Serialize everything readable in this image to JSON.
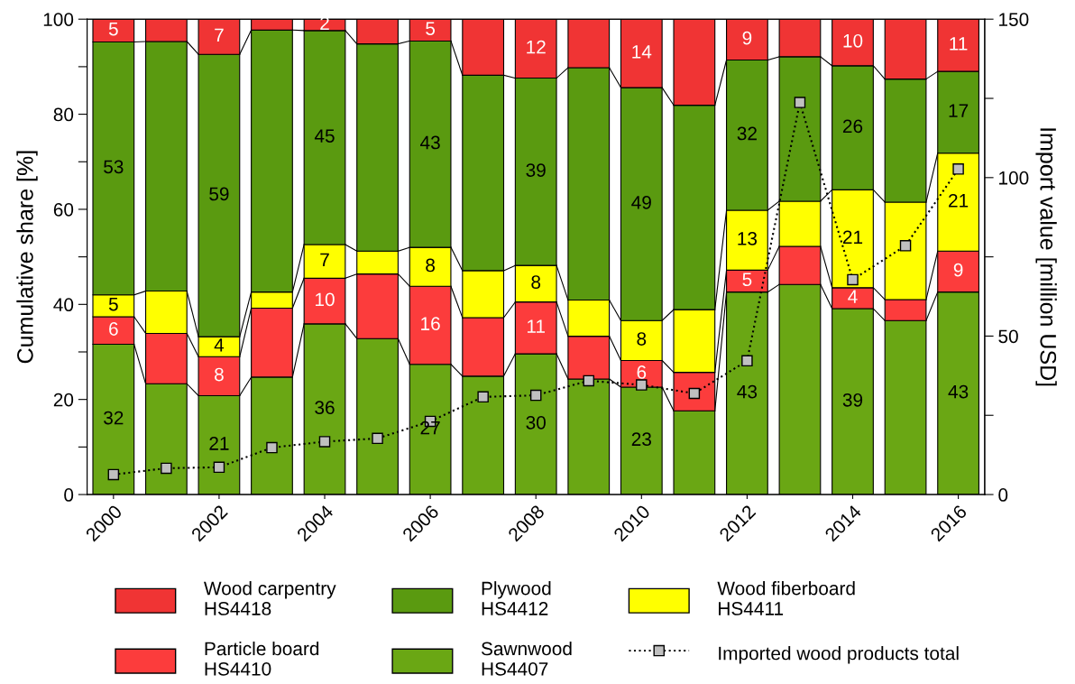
{
  "chart_data": {
    "type": "bar",
    "stacked": true,
    "ylabel": "Cumulative share [%]",
    "y2label": "Import value [million USD]",
    "x": [
      2000,
      2001,
      2002,
      2003,
      2004,
      2005,
      2006,
      2007,
      2008,
      2009,
      2010,
      2011,
      2012,
      2013,
      2014,
      2015,
      2016
    ],
    "xlim": [
      1999.5,
      2016.5
    ],
    "xticks": [
      2000,
      2002,
      2004,
      2006,
      2008,
      2010,
      2012,
      2014,
      2016
    ],
    "ylim": [
      0,
      100
    ],
    "yticks": [
      0,
      {
        "value": 10,
        "label": null
      },
      20,
      {
        "value": 30,
        "label": null
      },
      40,
      {
        "value": 50,
        "label": null
      },
      60,
      {
        "value": 70,
        "label": null
      },
      80,
      {
        "value": 90,
        "label": null
      },
      100
    ],
    "y2lim": [
      0,
      150
    ],
    "y2ticks": [
      0,
      {
        "value": 25,
        "label": null
      },
      50,
      {
        "value": 75,
        "label": null
      },
      100,
      {
        "value": 125,
        "label": null
      },
      150
    ],
    "grid": false,
    "legend": "bottom",
    "series": [
      {
        "name": "Sawnwood\nHS4407",
        "color": "#6aa714",
        "values": [
          31.6,
          23.3,
          20.8,
          24.7,
          35.9,
          32.8,
          27.4,
          24.9,
          29.6,
          24.3,
          22.6,
          17.6,
          42.6,
          44.2,
          39.1,
          36.6,
          42.6
        ],
        "value_labels": [
          "32",
          null,
          "21",
          null,
          "36",
          null,
          "27",
          null,
          "30",
          null,
          "23",
          null,
          "43",
          null,
          "39",
          null,
          "43"
        ]
      },
      {
        "name": "Particle board\nHS4410",
        "color": "#fc3c3c",
        "values": [
          5.8,
          10.6,
          8.2,
          14.5,
          9.6,
          13.6,
          16.4,
          12.3,
          10.9,
          9.0,
          5.6,
          8.1,
          4.6,
          8.0,
          4.4,
          4.4,
          8.6
        ],
        "value_labels": [
          "6",
          null,
          "8",
          null,
          "10",
          null,
          "16",
          null,
          "11",
          null,
          "6",
          null,
          "5",
          null,
          "4",
          null,
          "9"
        ]
      },
      {
        "name": "Wood fiberboard\nHS4411",
        "color": "#ffff00",
        "values": [
          4.6,
          8.9,
          4.2,
          3.4,
          7.1,
          4.8,
          8.2,
          9.9,
          7.7,
          7.6,
          8.4,
          13.2,
          12.6,
          9.5,
          20.6,
          20.5,
          20.6
        ],
        "value_labels": [
          "5",
          null,
          "4",
          null,
          "7",
          null,
          "8",
          null,
          "8",
          null,
          "8",
          null,
          "13",
          null,
          "21",
          null,
          "21"
        ]
      },
      {
        "name": "Plywood\nHS4412",
        "color": "#5a9a10",
        "values": [
          53.2,
          52.5,
          59.4,
          55.1,
          45.0,
          43.6,
          43.4,
          41.1,
          39.4,
          48.9,
          49.0,
          43.0,
          31.6,
          30.4,
          26.1,
          25.9,
          17.2
        ],
        "value_labels": [
          "53",
          null,
          "59",
          null,
          "45",
          null,
          "43",
          null,
          "39",
          null,
          "49",
          null,
          "32",
          null,
          "26",
          null,
          "17"
        ]
      },
      {
        "name": "Wood carpentry\nHS4418",
        "color": "#f03434",
        "values": [
          4.8,
          4.7,
          7.4,
          2.3,
          2.4,
          5.2,
          4.6,
          11.8,
          12.4,
          10.2,
          14.4,
          18.1,
          8.6,
          7.9,
          9.8,
          12.6,
          11.0
        ],
        "value_labels": [
          "5",
          null,
          "7",
          null,
          "2",
          null,
          "5",
          null,
          "12",
          null,
          "14",
          null,
          "9",
          null,
          "10",
          null,
          "11"
        ]
      },
      {
        "name": "Imported wood products total",
        "type": "line",
        "axis": "y2",
        "color": "#c0c0c0",
        "marker": "square",
        "line_style": "dotted",
        "values": [
          6.3,
          8.3,
          8.6,
          14.8,
          16.7,
          17.7,
          23.1,
          30.8,
          31.3,
          35.9,
          34.6,
          31.9,
          42.2,
          123.7,
          67.8,
          78.5,
          102.7
        ]
      }
    ]
  }
}
